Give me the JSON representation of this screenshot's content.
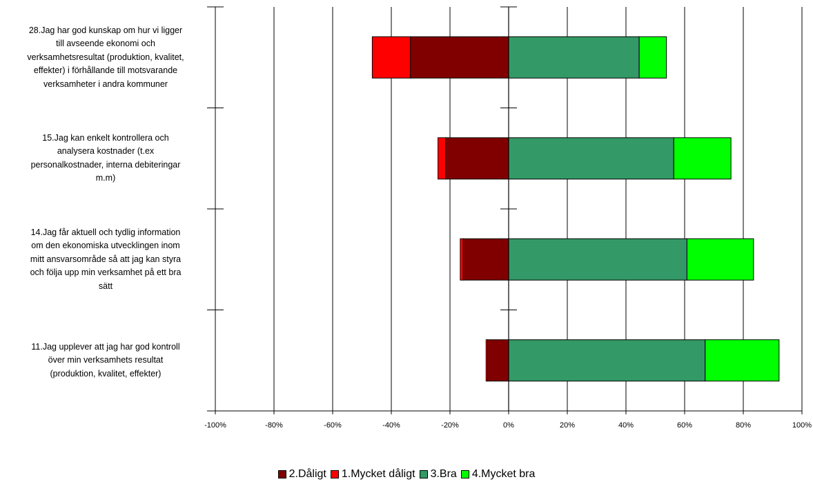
{
  "chart_data": {
    "type": "bar",
    "orientation": "horizontal",
    "stacked": "diverging",
    "categories": [
      "28.Jag har god kunskap om hur vi ligger till avseende ekonomi och verksamhetsresultat (produktion, kvalitet, effekter) i förhållande till motsvarande verksamheter i andra kommuner",
      "15.Jag kan enkelt kontrollera och analysera kostnader (t.ex personalkostnader, interna debiteringar m.m)",
      "14.Jag får aktuell och tydlig information om den ekonomiska utvecklingen inom mitt ansvarsområde så att jag kan styra och följa upp min verksamhet på ett bra sätt",
      "11.Jag upplever att jag har god kontroll över min verksamhets resultat (produktion, kvalitet, effekter)"
    ],
    "category_lines": [
      [
        "28.Jag har god kunskap om hur vi ligger",
        "till avseende ekonomi och",
        "verksamhetsresultat (produktion, kvalitet,",
        "effekter) i förhållande till motsvarande",
        "verksamheter i andra kommuner"
      ],
      [
        "15.Jag kan enkelt kontrollera och",
        "analysera kostnader (t.ex",
        "personalkostnader, interna debiteringar",
        "m.m)"
      ],
      [
        "14.Jag får aktuell och tydlig information",
        "om den ekonomiska utvecklingen inom",
        "mitt ansvarsområde så att jag kan styra",
        "och följa upp min verksamhet på ett bra",
        "sätt"
      ],
      [
        "11.Jag upplever att jag har god kontroll",
        "över min verksamhets resultat",
        "(produktion, kvalitet, effekter)"
      ]
    ],
    "series": [
      {
        "name": "2.Dåligt",
        "values": [
          -33.5,
          -21.5,
          -15.5,
          -7.2
        ],
        "color": "#800000"
      },
      {
        "name": "1.Mycket dåligt",
        "values": [
          -13.0,
          -2.6,
          -1.0,
          -0.5
        ],
        "color": "#ff0000"
      },
      {
        "name": "3.Bra",
        "values": [
          44.5,
          56.3,
          60.8,
          67.0
        ],
        "color": "#339966"
      },
      {
        "name": "4.Mycket bra",
        "values": [
          9.3,
          19.5,
          22.7,
          25.2
        ],
        "color": "#00ff00"
      }
    ],
    "xlim": [
      -100,
      100
    ],
    "xticks": [
      -100,
      -80,
      -60,
      -40,
      -20,
      0,
      20,
      40,
      60,
      80,
      100
    ],
    "tick_labels": [
      "-100%",
      "-80%",
      "-60%",
      "-40%",
      "-20%",
      "0%",
      "20%",
      "40%",
      "60%",
      "80%",
      "100%"
    ],
    "legend_order": [
      "2.Dåligt",
      "1.Mycket dåligt",
      "3.Bra",
      "4.Mycket bra"
    ],
    "grid": true,
    "legend_position": "bottom"
  }
}
